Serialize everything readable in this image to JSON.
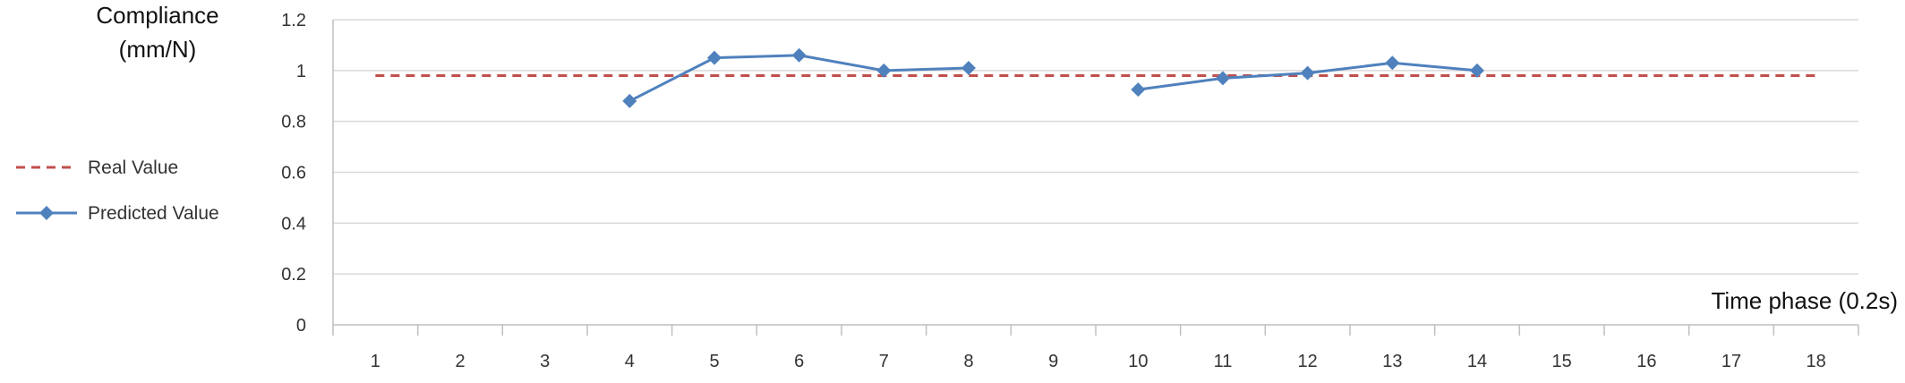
{
  "chart_data": {
    "type": "line",
    "ylabel_line1": "Compliance",
    "ylabel_line2": "(mm/N)",
    "xlabel": "Time phase (0.2s)",
    "categories": [
      "1",
      "2",
      "3",
      "4",
      "5",
      "6",
      "7",
      "8",
      "9",
      "10",
      "11",
      "12",
      "13",
      "14",
      "15",
      "16",
      "17",
      "18"
    ],
    "ylim": [
      0,
      1.2
    ],
    "yticks": [
      "0",
      "0.2",
      "0.4",
      "0.6",
      "0.8",
      "1",
      "1.2"
    ],
    "grid": true,
    "legend_placement": "left",
    "series": [
      {
        "name": "Real Value",
        "style": "dashed",
        "color": "#c0504d",
        "points": [
          [
            1,
            0.98
          ],
          [
            18,
            0.98
          ]
        ]
      },
      {
        "name": "Predicted Value",
        "style": "solid-diamond",
        "color": "#4f81bd",
        "segments": [
          [
            [
              4,
              0.88
            ],
            [
              5,
              1.05
            ],
            [
              6,
              1.06
            ],
            [
              7,
              1.0
            ],
            [
              8,
              1.01
            ]
          ],
          [
            [
              10,
              0.925
            ],
            [
              11,
              0.97
            ],
            [
              12,
              0.99
            ],
            [
              13,
              1.03
            ],
            [
              14,
              1.0
            ]
          ]
        ]
      }
    ]
  }
}
